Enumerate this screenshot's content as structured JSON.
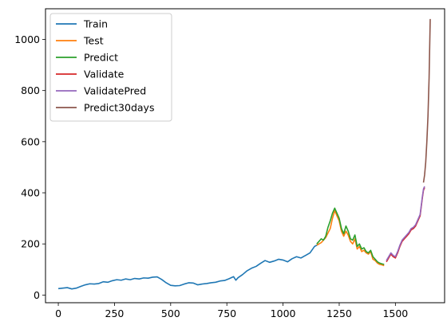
{
  "chart_data": {
    "type": "line",
    "title": "",
    "xlabel": "",
    "ylabel": "",
    "xlim": [
      -57,
      1719
    ],
    "ylim": [
      -30,
      1120
    ],
    "x_ticks": [
      0,
      250,
      500,
      750,
      1000,
      1250,
      1500
    ],
    "y_ticks": [
      0,
      200,
      400,
      600,
      800,
      1000
    ],
    "grid": false,
    "legend_position": "top-left",
    "series": [
      {
        "name": "Train",
        "color": "#1f77b4",
        "points": [
          [
            0,
            25
          ],
          [
            20,
            27
          ],
          [
            40,
            29
          ],
          [
            60,
            24
          ],
          [
            80,
            27
          ],
          [
            100,
            34
          ],
          [
            120,
            40
          ],
          [
            140,
            44
          ],
          [
            160,
            43
          ],
          [
            180,
            45
          ],
          [
            200,
            52
          ],
          [
            220,
            50
          ],
          [
            240,
            56
          ],
          [
            260,
            60
          ],
          [
            280,
            58
          ],
          [
            300,
            63
          ],
          [
            320,
            60
          ],
          [
            340,
            65
          ],
          [
            360,
            63
          ],
          [
            380,
            67
          ],
          [
            400,
            66
          ],
          [
            420,
            70
          ],
          [
            440,
            71
          ],
          [
            460,
            61
          ],
          [
            480,
            48
          ],
          [
            500,
            38
          ],
          [
            520,
            36
          ],
          [
            540,
            37
          ],
          [
            560,
            43
          ],
          [
            580,
            48
          ],
          [
            600,
            47
          ],
          [
            620,
            40
          ],
          [
            640,
            43
          ],
          [
            660,
            45
          ],
          [
            680,
            48
          ],
          [
            700,
            50
          ],
          [
            720,
            55
          ],
          [
            740,
            57
          ],
          [
            760,
            64
          ],
          [
            780,
            72
          ],
          [
            790,
            58
          ],
          [
            800,
            68
          ],
          [
            820,
            80
          ],
          [
            840,
            95
          ],
          [
            860,
            105
          ],
          [
            880,
            112
          ],
          [
            900,
            124
          ],
          [
            920,
            135
          ],
          [
            940,
            128
          ],
          [
            960,
            133
          ],
          [
            980,
            140
          ],
          [
            1000,
            137
          ],
          [
            1020,
            130
          ],
          [
            1040,
            142
          ],
          [
            1060,
            150
          ],
          [
            1080,
            145
          ],
          [
            1100,
            155
          ],
          [
            1120,
            165
          ],
          [
            1140,
            190
          ],
          [
            1160,
            200
          ]
        ]
      },
      {
        "name": "Test",
        "color": "#ff7f0e",
        "points": [
          [
            1150,
            195
          ],
          [
            1170,
            205
          ],
          [
            1190,
            225
          ],
          [
            1210,
            260
          ],
          [
            1220,
            300
          ],
          [
            1230,
            330
          ],
          [
            1240,
            310
          ],
          [
            1250,
            290
          ],
          [
            1260,
            250
          ],
          [
            1270,
            230
          ],
          [
            1280,
            250
          ],
          [
            1290,
            235
          ],
          [
            1300,
            210
          ],
          [
            1310,
            200
          ],
          [
            1320,
            220
          ],
          [
            1330,
            180
          ],
          [
            1340,
            190
          ],
          [
            1350,
            170
          ],
          [
            1360,
            175
          ],
          [
            1370,
            165
          ],
          [
            1380,
            160
          ],
          [
            1390,
            170
          ],
          [
            1400,
            140
          ],
          [
            1410,
            135
          ],
          [
            1420,
            125
          ],
          [
            1430,
            120
          ],
          [
            1440,
            118
          ],
          [
            1450,
            115
          ]
        ]
      },
      {
        "name": "Predict",
        "color": "#2ca02c",
        "points": [
          [
            1150,
            200
          ],
          [
            1160,
            210
          ],
          [
            1170,
            220
          ],
          [
            1180,
            215
          ],
          [
            1190,
            230
          ],
          [
            1200,
            265
          ],
          [
            1210,
            290
          ],
          [
            1220,
            320
          ],
          [
            1230,
            340
          ],
          [
            1240,
            320
          ],
          [
            1250,
            300
          ],
          [
            1260,
            260
          ],
          [
            1270,
            240
          ],
          [
            1280,
            270
          ],
          [
            1290,
            250
          ],
          [
            1300,
            220
          ],
          [
            1310,
            215
          ],
          [
            1320,
            235
          ],
          [
            1330,
            190
          ],
          [
            1340,
            200
          ],
          [
            1350,
            180
          ],
          [
            1360,
            185
          ],
          [
            1370,
            170
          ],
          [
            1380,
            165
          ],
          [
            1390,
            175
          ],
          [
            1400,
            150
          ],
          [
            1410,
            140
          ],
          [
            1420,
            130
          ],
          [
            1430,
            125
          ],
          [
            1440,
            122
          ],
          [
            1450,
            120
          ]
        ]
      },
      {
        "name": "Validate",
        "color": "#d62728",
        "points": [
          [
            1460,
            130
          ],
          [
            1470,
            145
          ],
          [
            1480,
            160
          ],
          [
            1490,
            150
          ],
          [
            1500,
            145
          ],
          [
            1510,
            165
          ],
          [
            1520,
            190
          ],
          [
            1530,
            210
          ],
          [
            1540,
            220
          ],
          [
            1550,
            230
          ],
          [
            1560,
            240
          ],
          [
            1570,
            255
          ],
          [
            1580,
            260
          ],
          [
            1590,
            270
          ],
          [
            1600,
            290
          ],
          [
            1610,
            310
          ],
          [
            1620,
            380
          ],
          [
            1625,
            410
          ],
          [
            1630,
            420
          ]
        ]
      },
      {
        "name": "ValidatePred",
        "color": "#9467bd",
        "points": [
          [
            1460,
            135
          ],
          [
            1470,
            150
          ],
          [
            1480,
            165
          ],
          [
            1490,
            155
          ],
          [
            1500,
            150
          ],
          [
            1510,
            170
          ],
          [
            1520,
            195
          ],
          [
            1530,
            215
          ],
          [
            1540,
            225
          ],
          [
            1550,
            235
          ],
          [
            1560,
            245
          ],
          [
            1570,
            260
          ],
          [
            1580,
            265
          ],
          [
            1590,
            275
          ],
          [
            1600,
            295
          ],
          [
            1610,
            315
          ],
          [
            1620,
            385
          ],
          [
            1625,
            415
          ],
          [
            1630,
            425
          ]
        ]
      },
      {
        "name": "Predict30days",
        "color": "#8c564b",
        "points": [
          [
            1625,
            440
          ],
          [
            1630,
            470
          ],
          [
            1635,
            520
          ],
          [
            1640,
            600
          ],
          [
            1645,
            700
          ],
          [
            1650,
            850
          ],
          [
            1655,
            1080
          ]
        ]
      }
    ]
  }
}
